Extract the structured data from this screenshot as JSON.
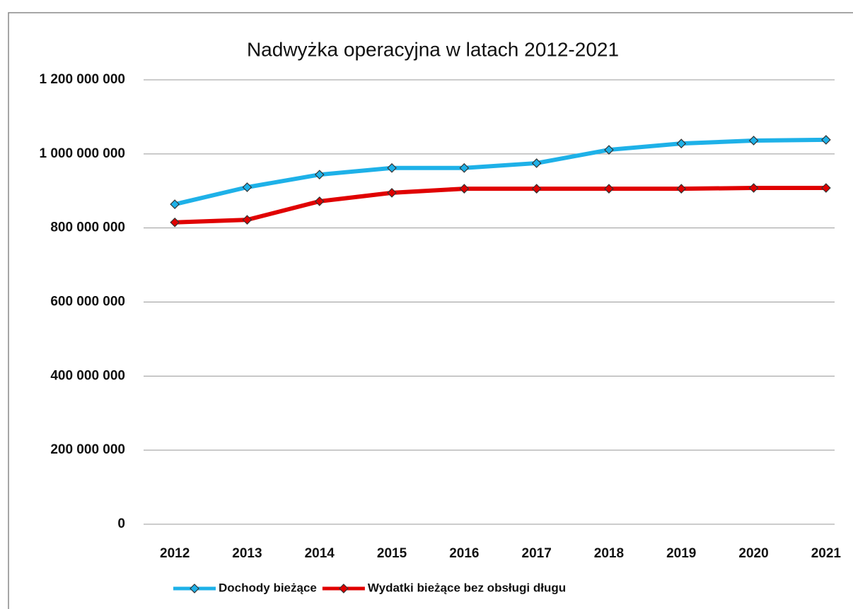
{
  "chart_data": {
    "type": "line",
    "title": "Nadwyżka operacyjna w latach 2012-2021",
    "categories": [
      "2012",
      "2013",
      "2014",
      "2015",
      "2016",
      "2017",
      "2018",
      "2019",
      "2020",
      "2021"
    ],
    "series": [
      {
        "name": "Dochody bieżące",
        "color": "#1eb1e8",
        "values": [
          864000000,
          910000000,
          944000000,
          962000000,
          962000000,
          975000000,
          1011000000,
          1028000000,
          1036000000,
          1038000000
        ]
      },
      {
        "name": "Wydatki bieżące bez obsługi długu",
        "color": "#e00000",
        "values": [
          815000000,
          822000000,
          872000000,
          895000000,
          906000000,
          906000000,
          906000000,
          906000000,
          908000000,
          908000000
        ]
      }
    ],
    "ylim": [
      0,
      1200000000
    ],
    "yticks": [
      0,
      {
        "value": 200000000,
        "label": "200 000 000"
      },
      {
        "value": 400000000,
        "label": "400 000 000"
      },
      {
        "value": 600000000,
        "label": "600 000 000"
      },
      {
        "value": 800000000,
        "label": "800 000 000"
      },
      {
        "value": 1000000000,
        "label": "1 000 000 000"
      },
      {
        "value": 1200000000,
        "label": "1 200 000 000"
      }
    ],
    "grid": true,
    "legend": "bottom"
  }
}
